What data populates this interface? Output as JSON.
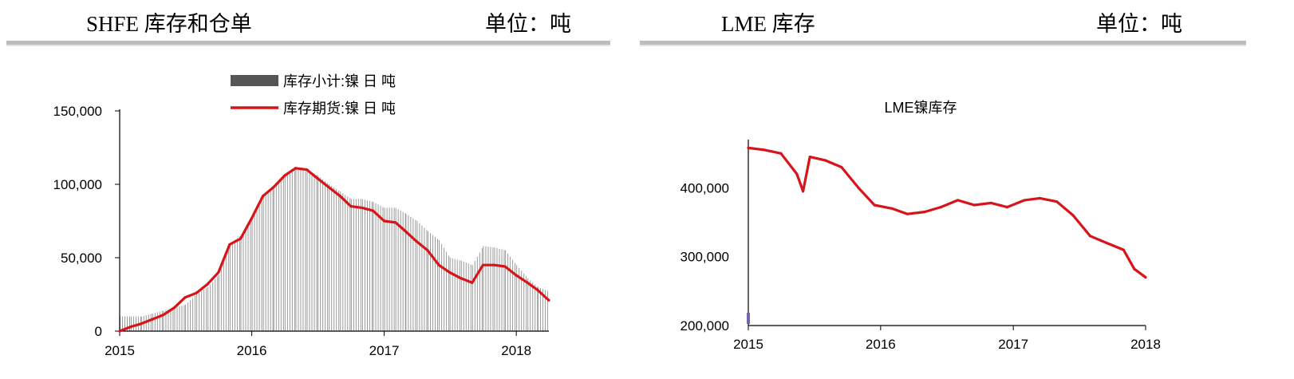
{
  "left_panel": {
    "header_title": "SHFE 库存和仓单",
    "header_unit": "单位：吨"
  },
  "right_panel": {
    "header_title": "LME 库存",
    "header_unit": "单位：吨"
  },
  "chart_data": [
    {
      "type": "bar",
      "x_type": "date",
      "x_ticks": [
        "2015",
        "2016",
        "2017",
        "2018"
      ],
      "y_ticks": [
        "0",
        "50,000",
        "100,000",
        "150,000"
      ],
      "ylim": [
        0,
        150000
      ],
      "xlim": [
        "2015-01-01",
        "2018-04-01"
      ],
      "legend_position": "top-center",
      "grid": false,
      "series": [
        {
          "name": "库存小计:镍 日 吨",
          "type": "bar",
          "color": "#555555",
          "x": [
            "2015-01-01",
            "2015-02-01",
            "2015-03-01",
            "2015-04-01",
            "2015-05-01",
            "2015-06-01",
            "2015-07-01",
            "2015-08-01",
            "2015-09-01",
            "2015-10-01",
            "2015-11-01",
            "2015-12-01",
            "2016-01-01",
            "2016-02-01",
            "2016-03-01",
            "2016-04-01",
            "2016-05-01",
            "2016-06-01",
            "2016-07-01",
            "2016-08-01",
            "2016-09-01",
            "2016-10-01",
            "2016-11-01",
            "2016-12-01",
            "2017-01-01",
            "2017-02-01",
            "2017-03-01",
            "2017-04-01",
            "2017-05-01",
            "2017-06-01",
            "2017-07-01",
            "2017-08-01",
            "2017-09-01",
            "2017-10-01",
            "2017-11-01",
            "2017-12-01",
            "2018-01-01",
            "2018-02-01",
            "2018-03-01",
            "2018-04-01"
          ],
          "values": [
            10000,
            10000,
            10000,
            12000,
            14000,
            16000,
            18000,
            25000,
            30000,
            38000,
            60000,
            65000,
            78000,
            92000,
            98000,
            105000,
            110000,
            110000,
            106000,
            100000,
            95000,
            90000,
            90000,
            88000,
            84000,
            84000,
            80000,
            75000,
            68000,
            62000,
            50000,
            48000,
            45000,
            58000,
            57000,
            55000,
            45000,
            36000,
            30000,
            27000
          ]
        },
        {
          "name": "库存期货:镍 日 吨",
          "type": "line",
          "color": "#d7141a",
          "x": [
            "2015-01-01",
            "2015-02-01",
            "2015-03-01",
            "2015-04-01",
            "2015-05-01",
            "2015-06-01",
            "2015-07-01",
            "2015-08-01",
            "2015-09-01",
            "2015-10-01",
            "2015-11-01",
            "2015-12-01",
            "2016-01-01",
            "2016-02-01",
            "2016-03-01",
            "2016-04-01",
            "2016-05-01",
            "2016-06-01",
            "2016-07-01",
            "2016-08-01",
            "2016-09-01",
            "2016-10-01",
            "2016-11-01",
            "2016-12-01",
            "2017-01-01",
            "2017-02-01",
            "2017-03-01",
            "2017-04-01",
            "2017-05-01",
            "2017-06-01",
            "2017-07-01",
            "2017-08-01",
            "2017-09-01",
            "2017-10-01",
            "2017-11-01",
            "2017-12-01",
            "2018-01-01",
            "2018-02-01",
            "2018-03-01",
            "2018-04-01"
          ],
          "values": [
            0,
            3000,
            5000,
            8000,
            11000,
            16000,
            23000,
            26000,
            32000,
            40000,
            59000,
            63000,
            77000,
            92000,
            98000,
            106000,
            111000,
            110000,
            104000,
            98000,
            92000,
            85000,
            84000,
            82000,
            75000,
            74000,
            68000,
            61000,
            55000,
            45000,
            40000,
            36000,
            33000,
            45000,
            45000,
            44000,
            38000,
            33000,
            28000,
            21000
          ]
        }
      ]
    },
    {
      "type": "line",
      "x_type": "date",
      "title": "LME镍库存",
      "x_ticks": [
        "2015",
        "2016",
        "2017",
        "2018"
      ],
      "y_ticks": [
        "200,000",
        "300,000",
        "400,000"
      ],
      "ylim": [
        200000,
        470000
      ],
      "xlim": [
        "2015-01-01",
        "2018-01-01"
      ],
      "grid": false,
      "series": [
        {
          "color": "#d7141a",
          "x": [
            "2015-01-01",
            "2015-02-15",
            "2015-04-01",
            "2015-05-15",
            "2015-06-01",
            "2015-06-20",
            "2015-08-01",
            "2015-09-15",
            "2015-11-01",
            "2015-12-15",
            "2016-02-01",
            "2016-03-15",
            "2016-05-01",
            "2016-06-15",
            "2016-08-01",
            "2016-09-15",
            "2016-11-01",
            "2016-12-15",
            "2017-02-01",
            "2017-03-15",
            "2017-05-01",
            "2017-06-15",
            "2017-08-01",
            "2017-09-15",
            "2017-11-01",
            "2017-12-01",
            "2018-01-01"
          ],
          "values": [
            458000,
            455000,
            450000,
            420000,
            395000,
            445000,
            440000,
            430000,
            400000,
            375000,
            370000,
            362000,
            365000,
            372000,
            382000,
            375000,
            378000,
            372000,
            382000,
            385000,
            380000,
            360000,
            330000,
            320000,
            310000,
            282000,
            270000
          ]
        }
      ]
    }
  ]
}
